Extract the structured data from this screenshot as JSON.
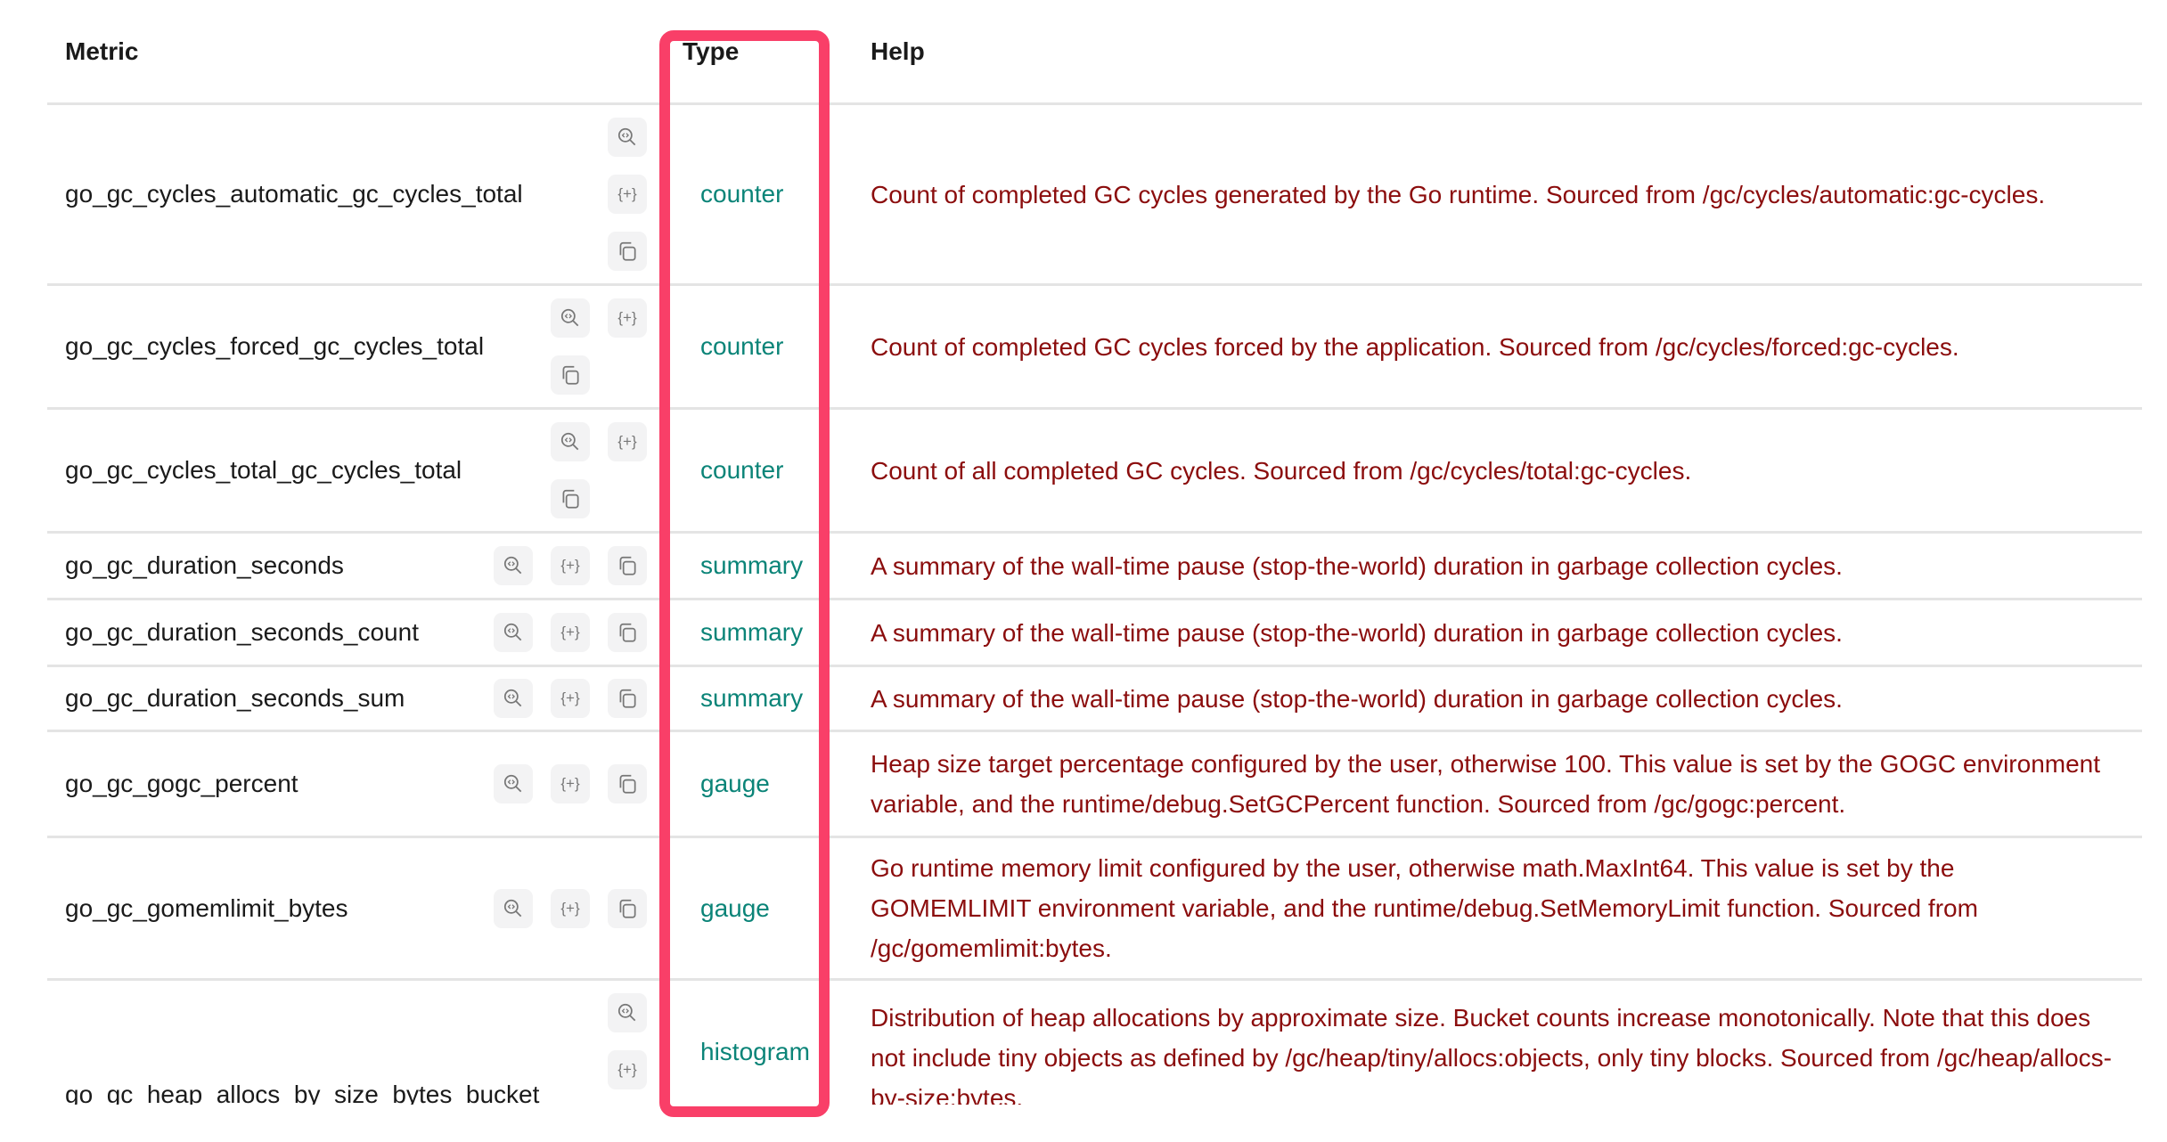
{
  "headers": {
    "metric": "Metric",
    "type": "Type",
    "help": "Help"
  },
  "highlight_color": "#f93f68",
  "colors": {
    "type_text": "#0b8478",
    "help_text": "#8b0d0d"
  },
  "row_icons": [
    "explore-query-icon",
    "add-to-query-icon",
    "copy-icon"
  ],
  "rows": [
    {
      "metric": "go_gc_cycles_automatic_gc_cycles_total",
      "type": "counter",
      "help": "Count of completed GC cycles generated by the Go runtime. Sourced from /gc/cycles/automatic:gc-cycles."
    },
    {
      "metric": "go_gc_cycles_forced_gc_cycles_total",
      "type": "counter",
      "help": "Count of completed GC cycles forced by the application. Sourced from /gc/cycles/forced:gc-cycles."
    },
    {
      "metric": "go_gc_cycles_total_gc_cycles_total",
      "type": "counter",
      "help": "Count of all completed GC cycles. Sourced from /gc/cycles/total:gc-cycles."
    },
    {
      "metric": "go_gc_duration_seconds",
      "type": "summary",
      "help": "A summary of the wall-time pause (stop-the-world) duration in garbage collection cycles."
    },
    {
      "metric": "go_gc_duration_seconds_count",
      "type": "summary",
      "help": "A summary of the wall-time pause (stop-the-world) duration in garbage collection cycles."
    },
    {
      "metric": "go_gc_duration_seconds_sum",
      "type": "summary",
      "help": "A summary of the wall-time pause (stop-the-world) duration in garbage collection cycles."
    },
    {
      "metric": "go_gc_gogc_percent",
      "type": "gauge",
      "help": "Heap size target percentage configured by the user, otherwise 100. This value is set by the GOGC environment variable, and the runtime/debug.SetGCPercent function. Sourced from /gc/gogc:percent."
    },
    {
      "metric": "go_gc_gomemlimit_bytes",
      "type": "gauge",
      "help": "Go runtime memory limit configured by the user, otherwise math.MaxInt64. This value is set by the GOMEMLIMIT environment variable, and the runtime/debug.SetMemoryLimit function. Sourced from /gc/gomemlimit:bytes."
    },
    {
      "metric": "go_gc_heap_allocs_by_size_bytes_bucket",
      "type": "histogram",
      "help": "Distribution of heap allocations by approximate size. Bucket counts increase monotonically. Note that this does not include tiny objects as defined by /gc/heap/tiny/allocs:objects, only tiny blocks. Sourced from /gc/heap/allocs-by-size:bytes."
    }
  ]
}
